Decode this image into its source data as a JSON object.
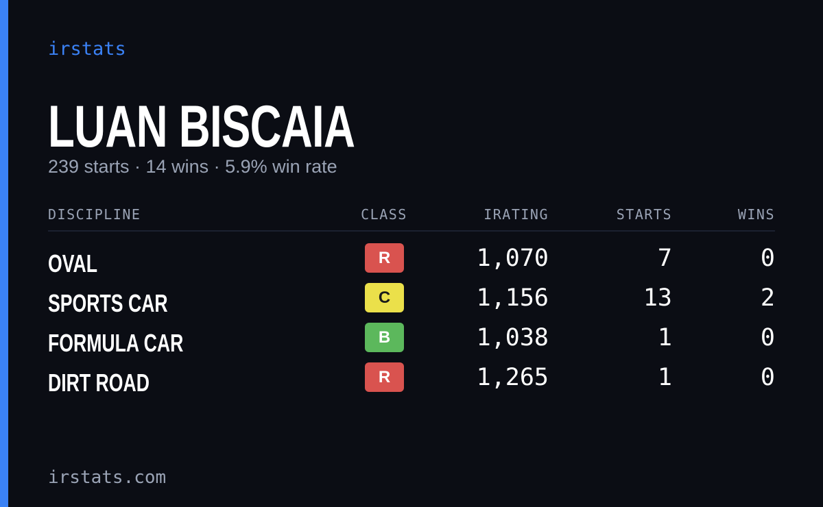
{
  "brand": "irstats",
  "driver": {
    "name": "LUAN BISCAIA",
    "summary": "239 starts · 14 wins · 5.9% win rate"
  },
  "table": {
    "headers": [
      "DISCIPLINE",
      "CLASS",
      "IRATING",
      "STARTS",
      "WINS"
    ],
    "rows": [
      {
        "discipline": "OVAL",
        "class": "R",
        "class_color": "#d9534f",
        "class_text_color": "#ffffff",
        "irating": "1,070",
        "starts": 7,
        "wins": 0
      },
      {
        "discipline": "SPORTS CAR",
        "class": "C",
        "class_color": "#ebe04a",
        "class_text_color": "#1a1a1a",
        "irating": "1,156",
        "starts": 13,
        "wins": 2
      },
      {
        "discipline": "FORMULA CAR",
        "class": "B",
        "class_color": "#5cb85c",
        "class_text_color": "#ffffff",
        "irating": "1,038",
        "starts": 1,
        "wins": 0
      },
      {
        "discipline": "DIRT ROAD",
        "class": "R",
        "class_color": "#d9534f",
        "class_text_color": "#ffffff",
        "irating": "1,265",
        "starts": 1,
        "wins": 0
      }
    ]
  },
  "footer": "irstats.com"
}
